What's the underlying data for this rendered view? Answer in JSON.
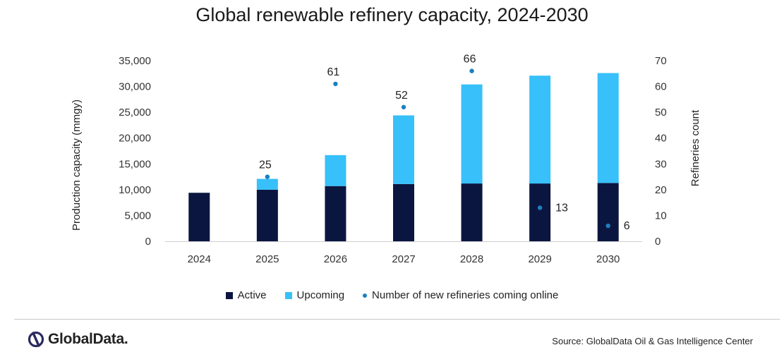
{
  "colors": {
    "active": "#0b1640",
    "upcoming": "#38c0fa",
    "dots": "#1c7fc0",
    "axis_text": "#333333",
    "divider": "#c8c8c8"
  },
  "chart_data": {
    "type": "bar",
    "stacked": true,
    "title": "Global renewable refinery capacity, 2024-2030",
    "categories": [
      "2024",
      "2025",
      "2026",
      "2027",
      "2028",
      "2029",
      "2030"
    ],
    "series": [
      {
        "name": "Active",
        "axis": "left",
        "values": [
          9400,
          10000,
          10700,
          11100,
          11200,
          11200,
          11300
        ]
      },
      {
        "name": "Upcoming",
        "axis": "left",
        "values": [
          0,
          2100,
          6000,
          13300,
          19200,
          20900,
          21300
        ]
      },
      {
        "name": "Number of new refineries coming online",
        "type": "scatter",
        "axis": "right",
        "values": [
          null,
          25,
          61,
          52,
          66,
          13,
          6
        ],
        "data_labels": [
          "",
          "25",
          "61",
          "52",
          "66",
          "13",
          "6"
        ]
      }
    ],
    "ylabel": "Production capacity (mmgy)",
    "y2label": "Refineries count",
    "ylim": [
      0,
      35000
    ],
    "y2lim": [
      0,
      70
    ],
    "yticks": [
      "0",
      "5,000",
      "10,000",
      "15,000",
      "20,000",
      "25,000",
      "30,000",
      "35,000"
    ],
    "y2ticks": [
      "0",
      "10",
      "20",
      "30",
      "40",
      "50",
      "60",
      "70"
    ],
    "legend_position": "bottom-center",
    "grid": false
  },
  "legend": {
    "active": "Active",
    "upcoming": "Upcoming",
    "refineries": "Number of new refineries coming online"
  },
  "footer": {
    "logo_text": "GlobalData.",
    "source": "Source: GlobalData Oil & Gas Intelligence Center"
  }
}
